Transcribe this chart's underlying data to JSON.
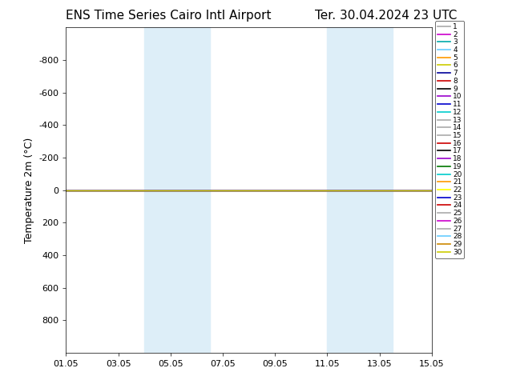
{
  "title_left": "ENS Time Series Cairo Intl Airport",
  "title_right": "Ter. 30.04.2024 23 UTC",
  "ylabel": "Temperature 2m (°C)",
  "ylim": [
    1000,
    -1000
  ],
  "yticks": [
    800,
    600,
    400,
    200,
    0,
    -200,
    -400,
    -600,
    -800
  ],
  "ytick_labels": [
    "800",
    "600",
    "400",
    "200",
    "0",
    "-200",
    "-400",
    "-600",
    "-800"
  ],
  "xtick_labels": [
    "01.05",
    "03.05",
    "05.05",
    "07.05",
    "09.05",
    "11.05",
    "13.05",
    "15.05"
  ],
  "xtick_positions": [
    0,
    2,
    4,
    6,
    8,
    10,
    12,
    14
  ],
  "xlim": [
    0,
    14
  ],
  "shaded_regions": [
    [
      3.0,
      4.0
    ],
    [
      4.0,
      5.5
    ],
    [
      10.0,
      11.0
    ],
    [
      11.0,
      12.5
    ]
  ],
  "shaded_color": "#ddeef8",
  "line_color": "#cccc00",
  "background_color": "#ffffff",
  "legend_colors": [
    "#aaaaaa",
    "#cc00cc",
    "#00aaaa",
    "#66ccff",
    "#ff9900",
    "#cccc00",
    "#000099",
    "#cc0000",
    "#000000",
    "#9900cc",
    "#0000cc",
    "#00cccc",
    "#aaaaaa",
    "#aaaaaa",
    "#aaaaaa",
    "#cc0000",
    "#000000",
    "#9900cc",
    "#007700",
    "#00cccc",
    "#ff9900",
    "#ffff00",
    "#0000cc",
    "#cc0000",
    "#aaaaaa",
    "#cc00cc",
    "#aaaaaa",
    "#66ccff",
    "#cc8800",
    "#cccc00"
  ],
  "n_members": 30,
  "title_fontsize": 11,
  "axis_fontsize": 9,
  "tick_fontsize": 8,
  "legend_fontsize": 6.5
}
